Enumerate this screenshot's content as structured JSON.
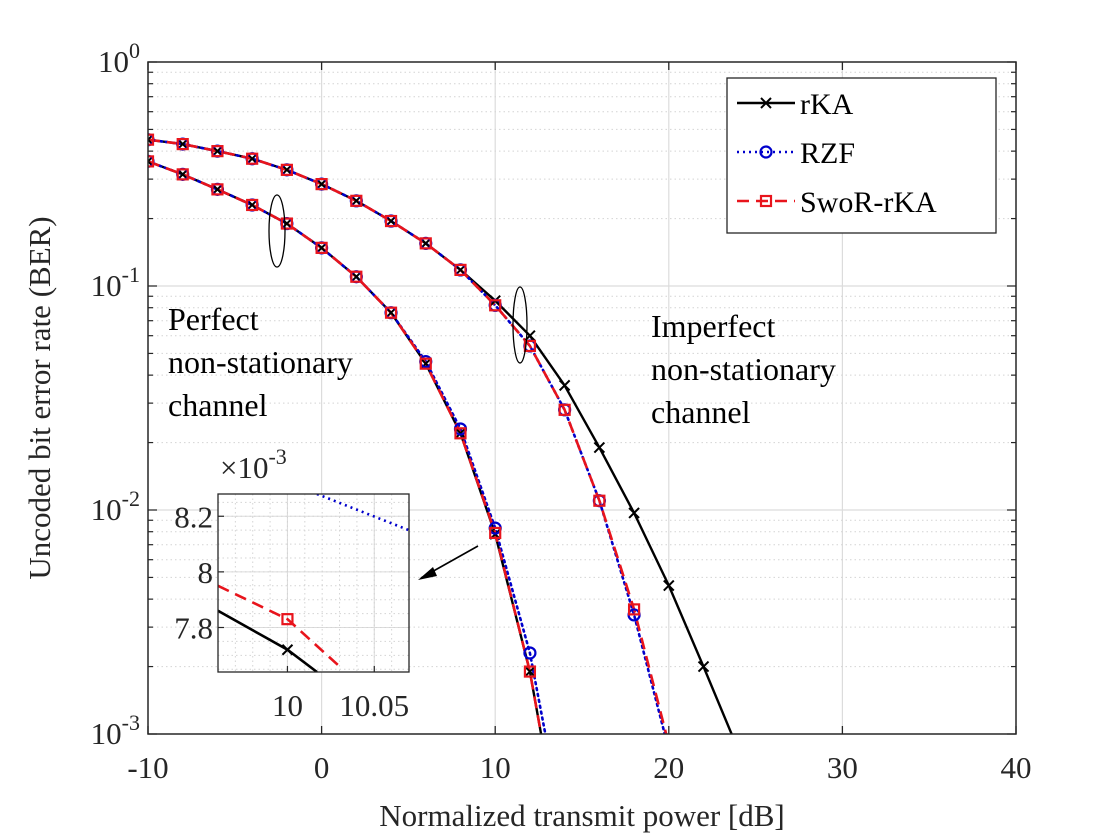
{
  "chart_data": {
    "type": "line",
    "xlabel": "Normalized transmit power [dB]",
    "ylabel": "Uncoded bit error rate (BER)",
    "xlim": [
      -10,
      40
    ],
    "ylim": [
      0.001,
      1
    ],
    "yscale": "log",
    "grid": true,
    "legend_position": "top-right",
    "x_ticks": [
      "-10",
      "0",
      "10",
      "20",
      "30",
      "40"
    ],
    "y_ticks": [
      {
        "base": "10",
        "exp": "0"
      },
      {
        "base": "10",
        "exp": "-1"
      },
      {
        "base": "10",
        "exp": "-2"
      },
      {
        "base": "10",
        "exp": "-3"
      }
    ],
    "series": [
      {
        "name": "rKA",
        "color": "#000000",
        "style": "solid",
        "marker": "x",
        "group": "imperfect",
        "x": [
          -10,
          -8,
          -6,
          -4,
          -2,
          0,
          2,
          4,
          6,
          8,
          10,
          12,
          14,
          16,
          18,
          20,
          22,
          24
        ],
        "y": [
          0.45,
          0.43,
          0.4,
          0.37,
          0.33,
          0.285,
          0.24,
          0.195,
          0.155,
          0.118,
          0.086,
          0.06,
          0.036,
          0.019,
          0.0097,
          0.0046,
          0.002,
          0.00085
        ]
      },
      {
        "name": "RZF",
        "color": "#0000cc",
        "style": "dotted",
        "marker": "o",
        "group": "imperfect",
        "x": [
          -10,
          -8,
          -6,
          -4,
          -2,
          0,
          2,
          4,
          6,
          8,
          10,
          12,
          14,
          16,
          18,
          20
        ],
        "y": [
          0.45,
          0.43,
          0.4,
          0.37,
          0.33,
          0.285,
          0.24,
          0.195,
          0.155,
          0.118,
          0.082,
          0.054,
          0.028,
          0.011,
          0.0034,
          0.00085
        ]
      },
      {
        "name": "SwoR-rKA",
        "color": "#e8141c",
        "style": "dashed",
        "marker": "s",
        "group": "imperfect",
        "x": [
          -10,
          -8,
          -6,
          -4,
          -2,
          0,
          2,
          4,
          6,
          8,
          10,
          12,
          14,
          16,
          18,
          20
        ],
        "y": [
          0.45,
          0.43,
          0.4,
          0.37,
          0.33,
          0.285,
          0.24,
          0.195,
          0.155,
          0.118,
          0.082,
          0.054,
          0.028,
          0.011,
          0.0036,
          0.0009
        ]
      },
      {
        "name": "rKA",
        "color": "#000000",
        "style": "solid",
        "marker": "x",
        "group": "perfect",
        "x": [
          -10,
          -8,
          -6,
          -4,
          -2,
          0,
          2,
          4,
          6,
          8,
          10,
          12,
          13
        ],
        "y": [
          0.36,
          0.315,
          0.27,
          0.23,
          0.19,
          0.148,
          0.11,
          0.076,
          0.045,
          0.022,
          0.0078,
          0.0019,
          0.0007
        ]
      },
      {
        "name": "RZF",
        "color": "#0000cc",
        "style": "dotted",
        "marker": "o",
        "group": "perfect",
        "x": [
          -10,
          -8,
          -6,
          -4,
          -2,
          0,
          2,
          4,
          6,
          8,
          10,
          12,
          13
        ],
        "y": [
          0.36,
          0.315,
          0.27,
          0.23,
          0.19,
          0.148,
          0.11,
          0.076,
          0.046,
          0.023,
          0.0083,
          0.0023,
          0.0009
        ]
      },
      {
        "name": "SwoR-rKA",
        "color": "#e8141c",
        "style": "dashed",
        "marker": "s",
        "group": "perfect",
        "x": [
          -10,
          -8,
          -6,
          -4,
          -2,
          0,
          2,
          4,
          6,
          8,
          10,
          12,
          13
        ],
        "y": [
          0.36,
          0.315,
          0.27,
          0.23,
          0.19,
          0.148,
          0.11,
          0.076,
          0.045,
          0.022,
          0.0079,
          0.0019,
          0.0007
        ]
      }
    ],
    "annotations": {
      "perfect_label": [
        "Perfect",
        "non-stationary",
        "channel"
      ],
      "imperfect_label": [
        "Imperfect",
        "non-stationary",
        "channel"
      ]
    },
    "inset": {
      "xlim": [
        9.96,
        10.07
      ],
      "ylim": [
        0.00764,
        0.00828
      ],
      "multiplier_base": "×10",
      "multiplier_exp": "-3",
      "x_ticks": [
        "10",
        "10.05"
      ],
      "y_ticks": [
        "7.8",
        "8",
        "8.2"
      ],
      "x_tick_values": [
        10,
        10.05
      ],
      "y_tick_values": [
        0.0078,
        0.008,
        0.0082
      ],
      "series": [
        {
          "name": "rKA",
          "color": "#000000",
          "style": "solid",
          "marker": "x",
          "points": [
            [
              9.96,
              0.00786
            ],
            [
              10,
              0.00772
            ],
            [
              10.017,
              0.00764
            ]
          ]
        },
        {
          "name": "SwoR-rKA",
          "color": "#e8141c",
          "style": "dashed",
          "marker": "s",
          "points": [
            [
              9.96,
              0.00795
            ],
            [
              10,
              0.00783
            ],
            [
              10.03,
              0.00766
            ]
          ]
        },
        {
          "name": "RZF",
          "color": "#0000cc",
          "style": "dotted",
          "marker": "o",
          "points": [
            [
              10.017,
              0.00828
            ],
            [
              10.07,
              0.00815
            ]
          ]
        }
      ]
    }
  }
}
